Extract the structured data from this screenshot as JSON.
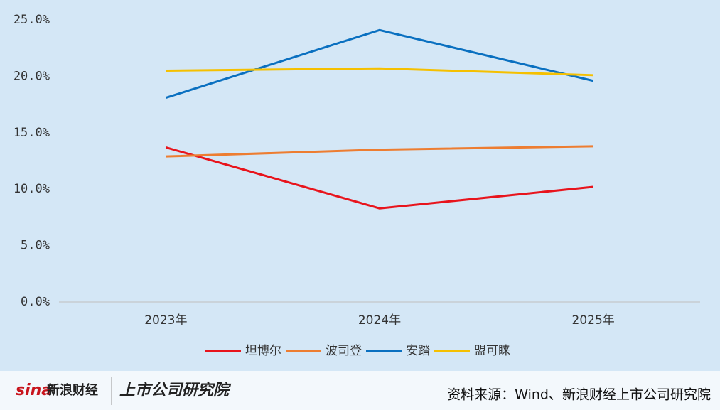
{
  "chart_data": {
    "type": "line",
    "categories": [
      "2023年",
      "2024年",
      "2025年"
    ],
    "series": [
      {
        "name": "坦博尔",
        "color": "#e8141c",
        "values": [
          13.7,
          8.3,
          10.2
        ]
      },
      {
        "name": "波司登",
        "color": "#ed7d31",
        "values": [
          12.9,
          13.5,
          13.8
        ]
      },
      {
        "name": "安踏",
        "color": "#0a70c0",
        "values": [
          18.1,
          24.1,
          19.6
        ]
      },
      {
        "name": "盟可睐",
        "color": "#f5c000",
        "values": [
          20.5,
          20.7,
          20.1
        ]
      }
    ],
    "ylim": [
      0,
      25
    ],
    "yticks": [
      {
        "value": 0,
        "label": "0.0%"
      },
      {
        "value": 5,
        "label": "5.0%"
      },
      {
        "value": 10,
        "label": "10.0%"
      },
      {
        "value": 15,
        "label": "15.0%"
      },
      {
        "value": 20,
        "label": "20.0%"
      },
      {
        "value": 25,
        "label": "25.0%"
      }
    ],
    "grid": false,
    "legend": "bottom"
  },
  "footer": {
    "logo_sina": "sina",
    "logo_name": "新浪财经",
    "brand": "上市公司研究院",
    "source": "资料来源：Wind、新浪财经上市公司研究院"
  }
}
